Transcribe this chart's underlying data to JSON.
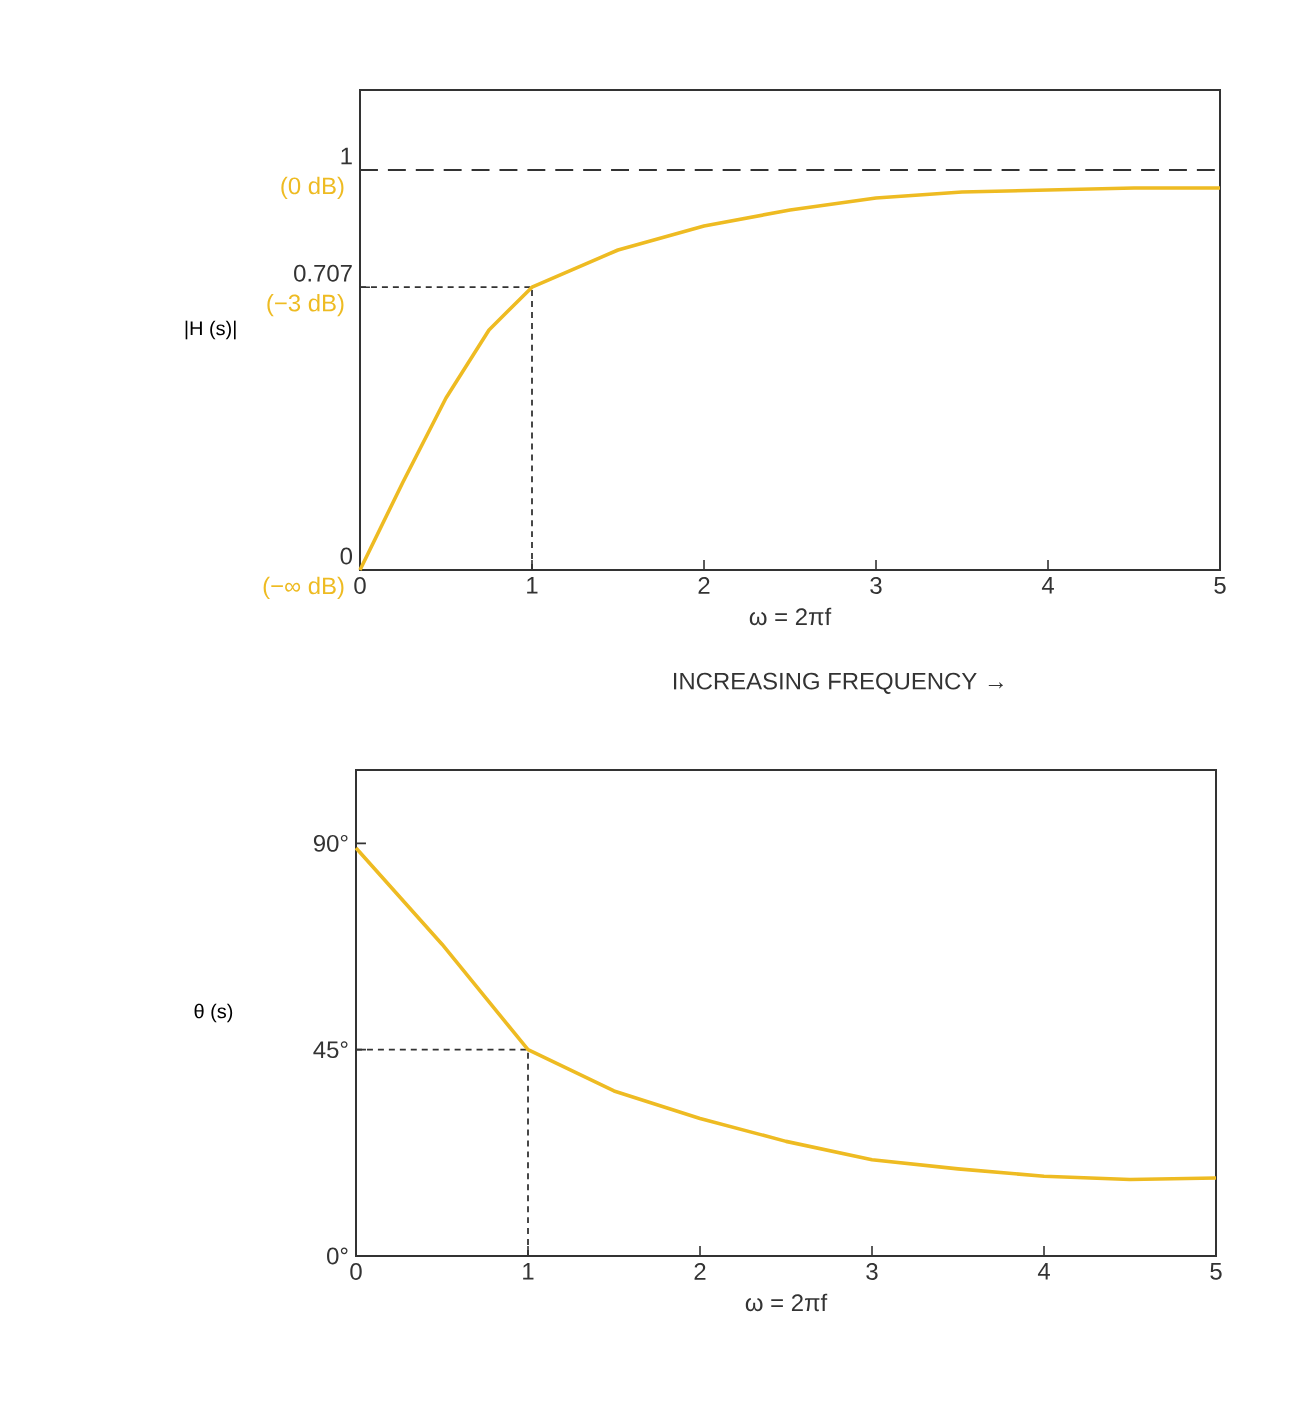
{
  "chart_data": [
    {
      "type": "line",
      "ylabel": "|H (s)|",
      "xlabel": "ω = 2πf",
      "x": [
        0,
        0.25,
        0.5,
        0.75,
        1,
        1.5,
        2,
        2.5,
        3,
        3.5,
        4,
        4.5,
        5
      ],
      "series": [
        {
          "color": "#eebb22",
          "values": [
            0,
            0.22,
            0.43,
            0.6,
            0.707,
            0.8,
            0.86,
            0.9,
            0.93,
            0.945,
            0.95,
            0.955,
            0.955
          ]
        }
      ],
      "xlim": [
        0,
        5
      ],
      "xticks": [
        0,
        1,
        2,
        3,
        4,
        5
      ],
      "ylim": [
        0,
        1.2
      ],
      "yticks": [
        0,
        0.707,
        1
      ],
      "ref_lines": [
        {
          "axis": "y",
          "value": 1,
          "line_style": "dashed"
        },
        {
          "axis": "y",
          "value": 0.707,
          "line_style": "dotted"
        },
        {
          "axis": "x",
          "value": 1,
          "line_style": "dotted"
        }
      ],
      "annotations": [
        "(−∞ dB)",
        "(−3 dB)",
        "(0 dB)",
        "INCREASING FREQUENCY →"
      ]
    },
    {
      "type": "line",
      "ylabel": "θ (s)",
      "xlabel": "ω = 2πf",
      "x": [
        0,
        0.5,
        1,
        1.5,
        2,
        2.5,
        3,
        3.5,
        4,
        4.5,
        5
      ],
      "series": [
        {
          "color": "#eebb22",
          "values": [
            89,
            68,
            45,
            36,
            30,
            25,
            21,
            19,
            17.4,
            16.7,
            17
          ]
        }
      ],
      "xlim": [
        0,
        5
      ],
      "xticks": [
        0,
        1,
        2,
        3,
        4,
        5
      ],
      "ylim": [
        0,
        106
      ],
      "yticks": [
        {
          "value": 0,
          "label": "0°"
        },
        {
          "value": 45,
          "label": "45°"
        },
        {
          "value": 90,
          "label": "90°"
        }
      ],
      "ref_lines": [
        {
          "axis": "y",
          "value": 45,
          "line_style": "dotted"
        },
        {
          "axis": "x",
          "value": 1,
          "line_style": "dotted"
        }
      ]
    }
  ]
}
